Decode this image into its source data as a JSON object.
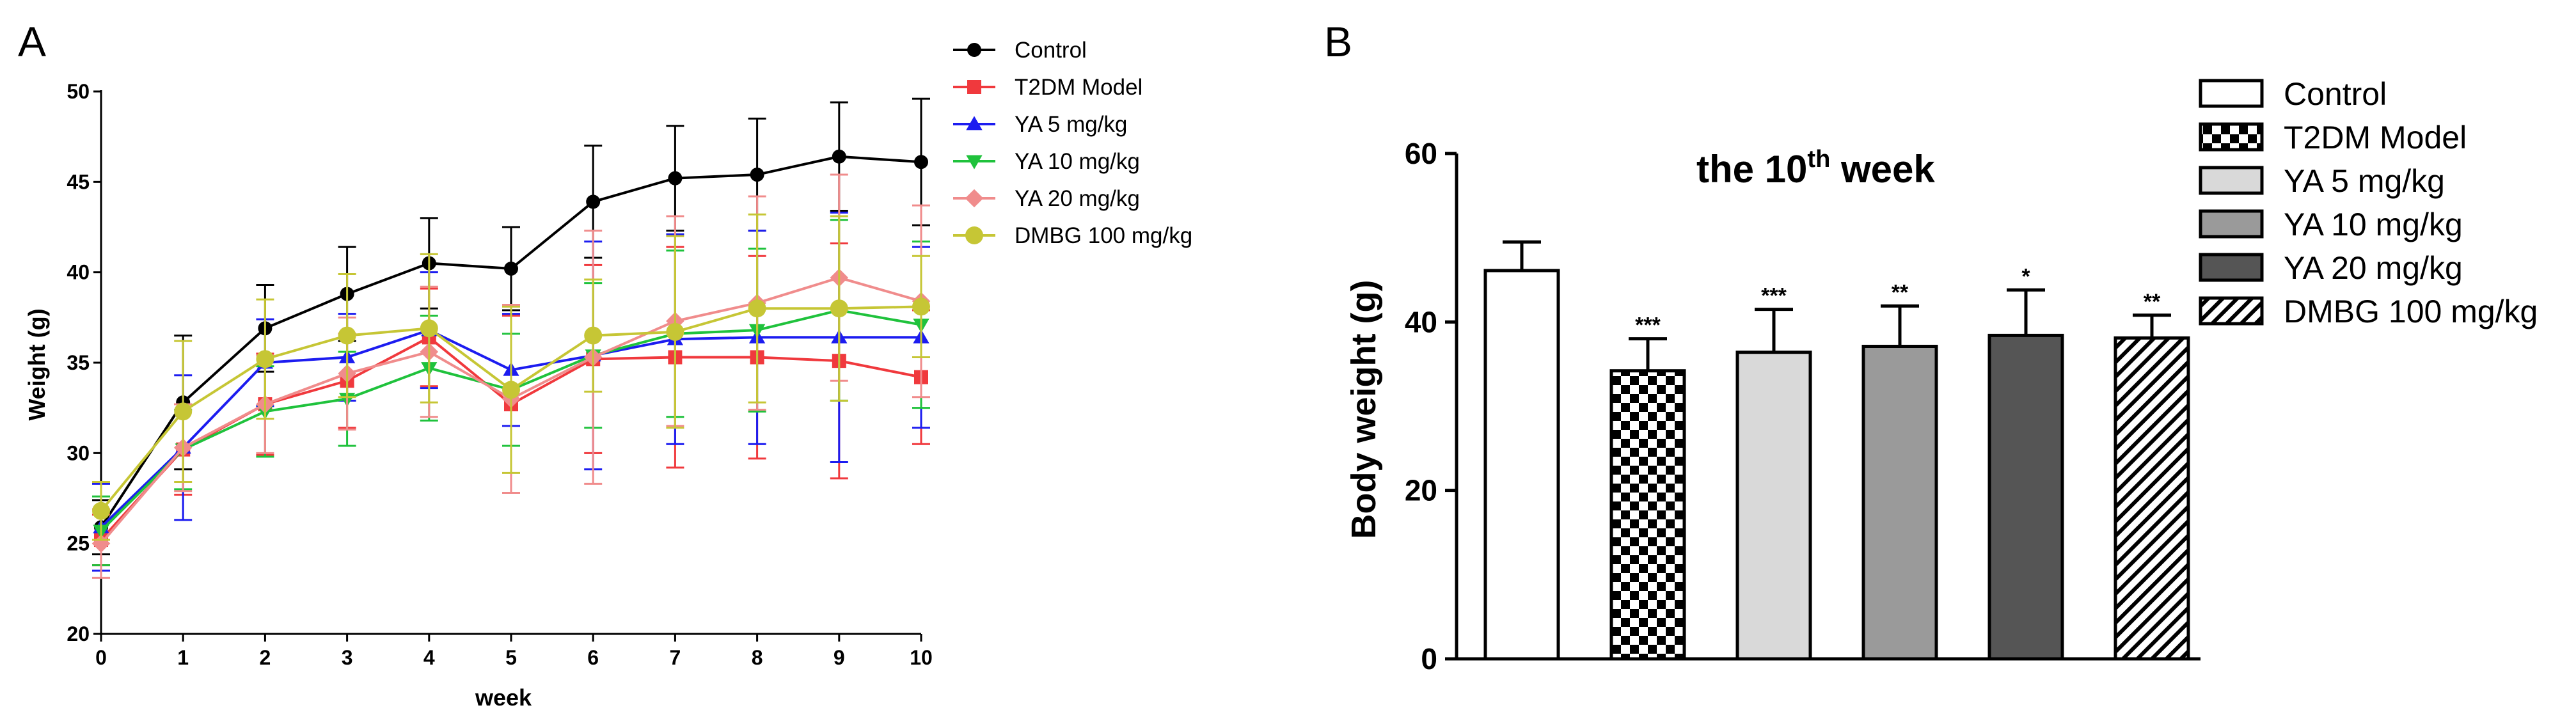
{
  "chart_data": [
    {
      "type": "line",
      "panel_label": "A",
      "title": "",
      "xlabel": "week",
      "ylabel": "Weight (g)",
      "x": [
        0,
        1,
        2,
        3,
        4,
        5,
        6,
        7,
        8,
        9,
        10
      ],
      "xticks": [
        "0",
        "1",
        "2",
        "3",
        "4",
        "5",
        "6",
        "7",
        "8",
        "9",
        "10"
      ],
      "yticks": [
        "20",
        "25",
        "30",
        "35",
        "40",
        "45",
        "50"
      ],
      "xlim": [
        0,
        10
      ],
      "ylim": [
        20,
        50
      ],
      "legend_position": "top-right",
      "series": [
        {
          "name": "Control",
          "color": "#000000",
          "marker": "circle",
          "values": [
            25.9,
            32.8,
            36.9,
            38.8,
            40.5,
            40.2,
            43.9,
            45.2,
            45.4,
            46.4,
            46.1
          ],
          "errors": [
            1.5,
            3.7,
            2.4,
            2.6,
            2.5,
            2.3,
            3.1,
            2.9,
            3.1,
            3.0,
            3.5
          ]
        },
        {
          "name": "T2DM Model",
          "color": "#f0393d",
          "marker": "square",
          "values": [
            25.2,
            30.2,
            32.7,
            34.0,
            36.4,
            32.7,
            35.2,
            35.3,
            35.3,
            35.1,
            34.2
          ],
          "errors": [
            1.4,
            2.5,
            2.8,
            2.6,
            2.7,
            4.9,
            5.2,
            6.1,
            5.6,
            6.5,
            3.7
          ]
        },
        {
          "name": "YA 5 mg/kg",
          "color": "#1c1cf0",
          "marker": "triangle-up",
          "values": [
            25.9,
            30.3,
            35.0,
            35.3,
            36.8,
            34.6,
            35.4,
            36.3,
            36.4,
            36.4,
            36.4
          ],
          "errors": [
            2.4,
            4.0,
            2.4,
            2.4,
            3.2,
            3.1,
            6.3,
            5.8,
            5.9,
            6.9,
            5.0
          ]
        },
        {
          "name": "YA 10 mg/kg",
          "color": "#1fc23c",
          "marker": "triangle-down",
          "values": [
            25.7,
            30.2,
            32.3,
            33.0,
            34.7,
            33.5,
            35.4,
            36.6,
            36.8,
            37.9,
            37.1
          ],
          "errors": [
            1.9,
            2.2,
            2.5,
            2.6,
            2.9,
            3.1,
            4.0,
            4.6,
            4.5,
            5.0,
            4.6
          ]
        },
        {
          "name": "YA 20 mg/kg",
          "color": "#f08c8c",
          "marker": "diamond",
          "values": [
            25.0,
            30.3,
            32.7,
            34.4,
            35.6,
            33.0,
            35.3,
            37.3,
            38.3,
            39.7,
            38.4
          ],
          "errors": [
            1.9,
            2.4,
            2.7,
            3.1,
            3.6,
            5.2,
            7.0,
            5.8,
            5.9,
            5.7,
            5.3
          ]
        },
        {
          "name": "DMBG 100 mg/kg",
          "color": "#c6c635",
          "marker": "circle",
          "values": [
            26.8,
            32.3,
            35.2,
            36.5,
            36.9,
            33.5,
            36.5,
            36.7,
            38.0,
            38.0,
            38.1
          ],
          "errors": [
            1.6,
            3.9,
            3.3,
            3.4,
            4.1,
            4.6,
            3.1,
            5.3,
            5.2,
            5.1,
            2.8
          ]
        }
      ]
    },
    {
      "type": "bar",
      "panel_label": "B",
      "title_main": "the 10",
      "title_sup": "th",
      "title_end": " week",
      "xlabel": "",
      "ylabel": "Body weight (g)",
      "yticks": [
        "0",
        "20",
        "40",
        "60"
      ],
      "ylim": [
        0,
        60
      ],
      "legend_position": "top-right",
      "categories": [
        "Control",
        "T2DM Model",
        "YA 5 mg/kg",
        "YA 10 mg/kg",
        "YA 20 mg/kg",
        "DMBG 100 mg/kg"
      ],
      "values": [
        46.1,
        34.2,
        36.4,
        37.1,
        38.4,
        38.1
      ],
      "errors": [
        3.4,
        3.8,
        5.1,
        4.8,
        5.4,
        2.7
      ],
      "significance": [
        "",
        "***",
        "***",
        "**",
        "*",
        "**"
      ],
      "fills": [
        "white",
        "checker",
        "#d9d9d9",
        "#9a9a9a",
        "#555555",
        "hatch"
      ]
    }
  ]
}
